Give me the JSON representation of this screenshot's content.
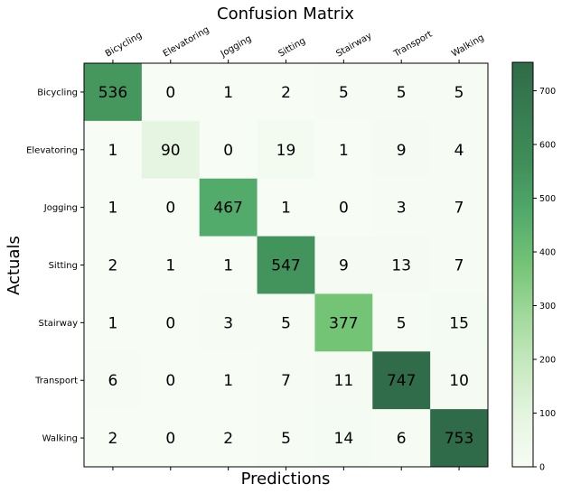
{
  "chart_data": {
    "type": "heatmap",
    "title": "Confusion Matrix",
    "xlabel": "Predictions",
    "ylabel": "Actuals",
    "x_categories": [
      "Bicycling",
      "Elevatoring",
      "Jogging",
      "Sitting",
      "Stairway",
      "Transport",
      "Walking"
    ],
    "y_categories": [
      "Bicycling",
      "Elevatoring",
      "Jogging",
      "Sitting",
      "Stairway",
      "Transport",
      "Walking"
    ],
    "values": [
      [
        536,
        0,
        1,
        2,
        5,
        5,
        5
      ],
      [
        1,
        90,
        0,
        19,
        1,
        9,
        4
      ],
      [
        1,
        0,
        467,
        1,
        0,
        3,
        7
      ],
      [
        2,
        1,
        1,
        547,
        9,
        13,
        7
      ],
      [
        1,
        0,
        3,
        5,
        377,
        5,
        15
      ],
      [
        6,
        0,
        1,
        7,
        11,
        747,
        10
      ],
      [
        2,
        0,
        2,
        5,
        14,
        6,
        753
      ]
    ],
    "colorbar": {
      "min": 0,
      "max": 753,
      "ticks": [
        0,
        100,
        200,
        300,
        400,
        500,
        600,
        700
      ],
      "colormap": "Greens",
      "low_color": "#f7fcf5",
      "high_color": "#2f6b48"
    },
    "x_tick_position": "top",
    "grid": false
  }
}
